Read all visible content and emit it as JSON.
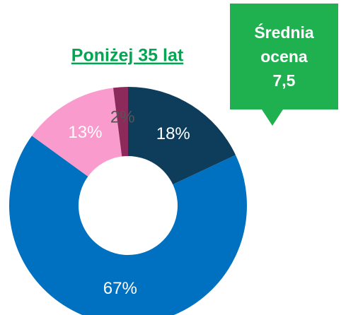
{
  "chart_data": {
    "type": "donut",
    "title": "Poniżej 35 lat",
    "values": [
      18,
      67,
      13,
      2
    ],
    "value_labels": [
      "18%",
      "67%",
      "13%",
      "2%"
    ],
    "colors": [
      "#0e3d5c",
      "#0070c0",
      "#f99bcc",
      "#8c2a5c"
    ],
    "annotation": [
      "Średnia",
      "ocena",
      "7,5"
    ]
  }
}
